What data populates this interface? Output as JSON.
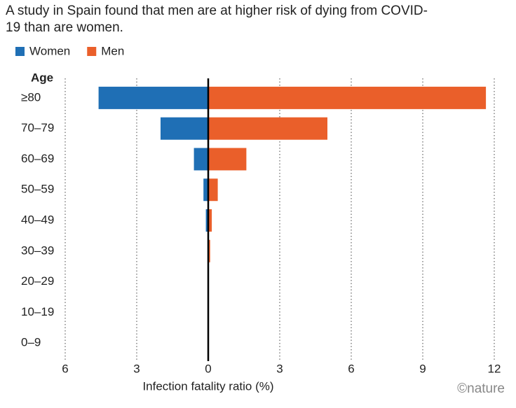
{
  "chart_data": {
    "type": "bar",
    "orientation": "horizontal",
    "title": "A study in Spain found that men are at higher risk of dying from COVID-19 than are women.",
    "y_label": "Age",
    "x_label": "Infection fatality ratio (%)",
    "credit": "©nature",
    "categories": [
      "≥80",
      "70–79",
      "60–69",
      "50–59",
      "40–49",
      "30–39",
      "20–29",
      "10–19",
      "0–9"
    ],
    "series": [
      {
        "name": "Women",
        "color": "#1f6fb5",
        "values": [
          -4.6,
          -2.0,
          -0.6,
          -0.2,
          -0.1,
          -0.02,
          -0.01,
          0,
          0
        ]
      },
      {
        "name": "Men",
        "color": "#ea5f2a",
        "values": [
          11.65,
          5.0,
          1.6,
          0.4,
          0.15,
          0.08,
          0.01,
          0,
          0
        ]
      }
    ],
    "xlim": [
      -6,
      12
    ],
    "xticks": [
      {
        "value": -6,
        "label": "6"
      },
      {
        "value": -3,
        "label": "3"
      },
      0,
      3,
      6,
      9,
      12
    ],
    "grid": true
  }
}
